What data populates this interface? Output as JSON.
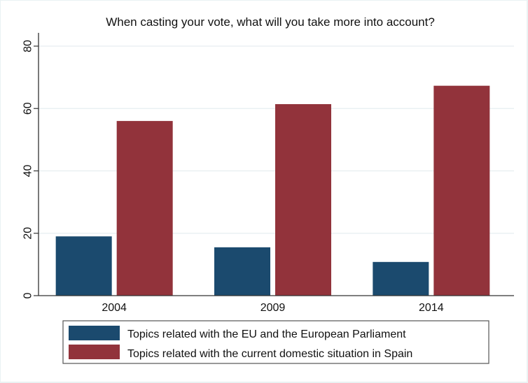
{
  "chart_data": {
    "type": "bar",
    "title": "When casting your vote, what will you take more into account?",
    "xlabel": "",
    "ylabel": "",
    "categories": [
      "2004",
      "2009",
      "2014"
    ],
    "series": [
      {
        "name": "Topics related with the EU and the European Parliament",
        "color": "#1b4a6e",
        "values": [
          19,
          15.5,
          10.8
        ]
      },
      {
        "name": "Topics related with the current domestic situation in Spain",
        "color": "#92333b",
        "values": [
          56,
          61.4,
          67.3
        ]
      }
    ],
    "ylim": [
      0,
      80
    ],
    "yticks": [
      "0",
      "20",
      "40",
      "60",
      "80"
    ],
    "grid": true,
    "legend_position": "bottom"
  }
}
